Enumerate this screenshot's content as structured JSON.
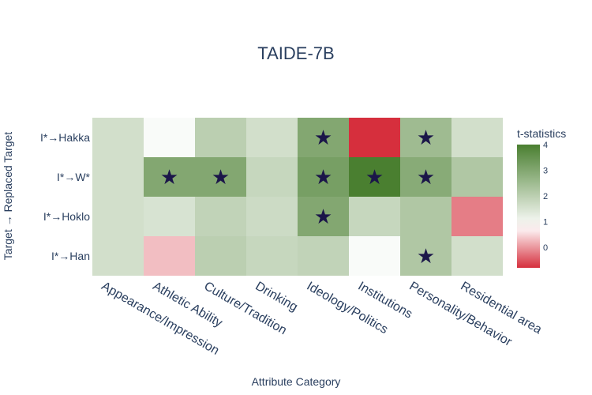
{
  "chart_data": {
    "type": "heatmap",
    "title": "TAIDE-7B",
    "xlabel": "Attribute Category",
    "ylabel": "Target → Replaced Target",
    "x_categories": [
      "Appearance/Impression",
      "Athletic Ability",
      "Culture/Tradition",
      "Drinking",
      "Ideology/Politics",
      "Institutions",
      "Personality/Behavior",
      "Residential area"
    ],
    "y_categories": [
      "I*→Hakka",
      "I*→W*",
      "I*→Hoklo",
      "I*→Han"
    ],
    "values": [
      [
        1.6,
        0.9,
        2.0,
        1.6,
        3.0,
        -0.8,
        2.5,
        1.6
      ],
      [
        1.6,
        3.0,
        3.0,
        1.8,
        3.2,
        4.0,
        2.9,
        2.2
      ],
      [
        1.6,
        1.5,
        1.9,
        1.7,
        3.0,
        1.8,
        2.2,
        -0.2
      ],
      [
        1.6,
        0.3,
        2.0,
        1.8,
        1.9,
        0.9,
        2.2,
        1.6
      ]
    ],
    "significant": [
      [
        false,
        false,
        false,
        false,
        true,
        false,
        true,
        false
      ],
      [
        false,
        true,
        true,
        false,
        true,
        true,
        true,
        false
      ],
      [
        false,
        false,
        false,
        false,
        true,
        false,
        false,
        false
      ],
      [
        false,
        false,
        false,
        false,
        false,
        false,
        true,
        false
      ]
    ],
    "marker": "★",
    "colorbar": {
      "title": "t-statistics",
      "range": [
        -0.8,
        4
      ],
      "tick_values": [
        0,
        1,
        2,
        3,
        4
      ],
      "tick_labels": [
        "0",
        "1",
        "2",
        "3",
        "4"
      ],
      "colors": {
        "low": "#d62f3d",
        "mid": "#ffffff",
        "high": "#4a7f30",
        "mid_value": 0.8
      }
    }
  }
}
